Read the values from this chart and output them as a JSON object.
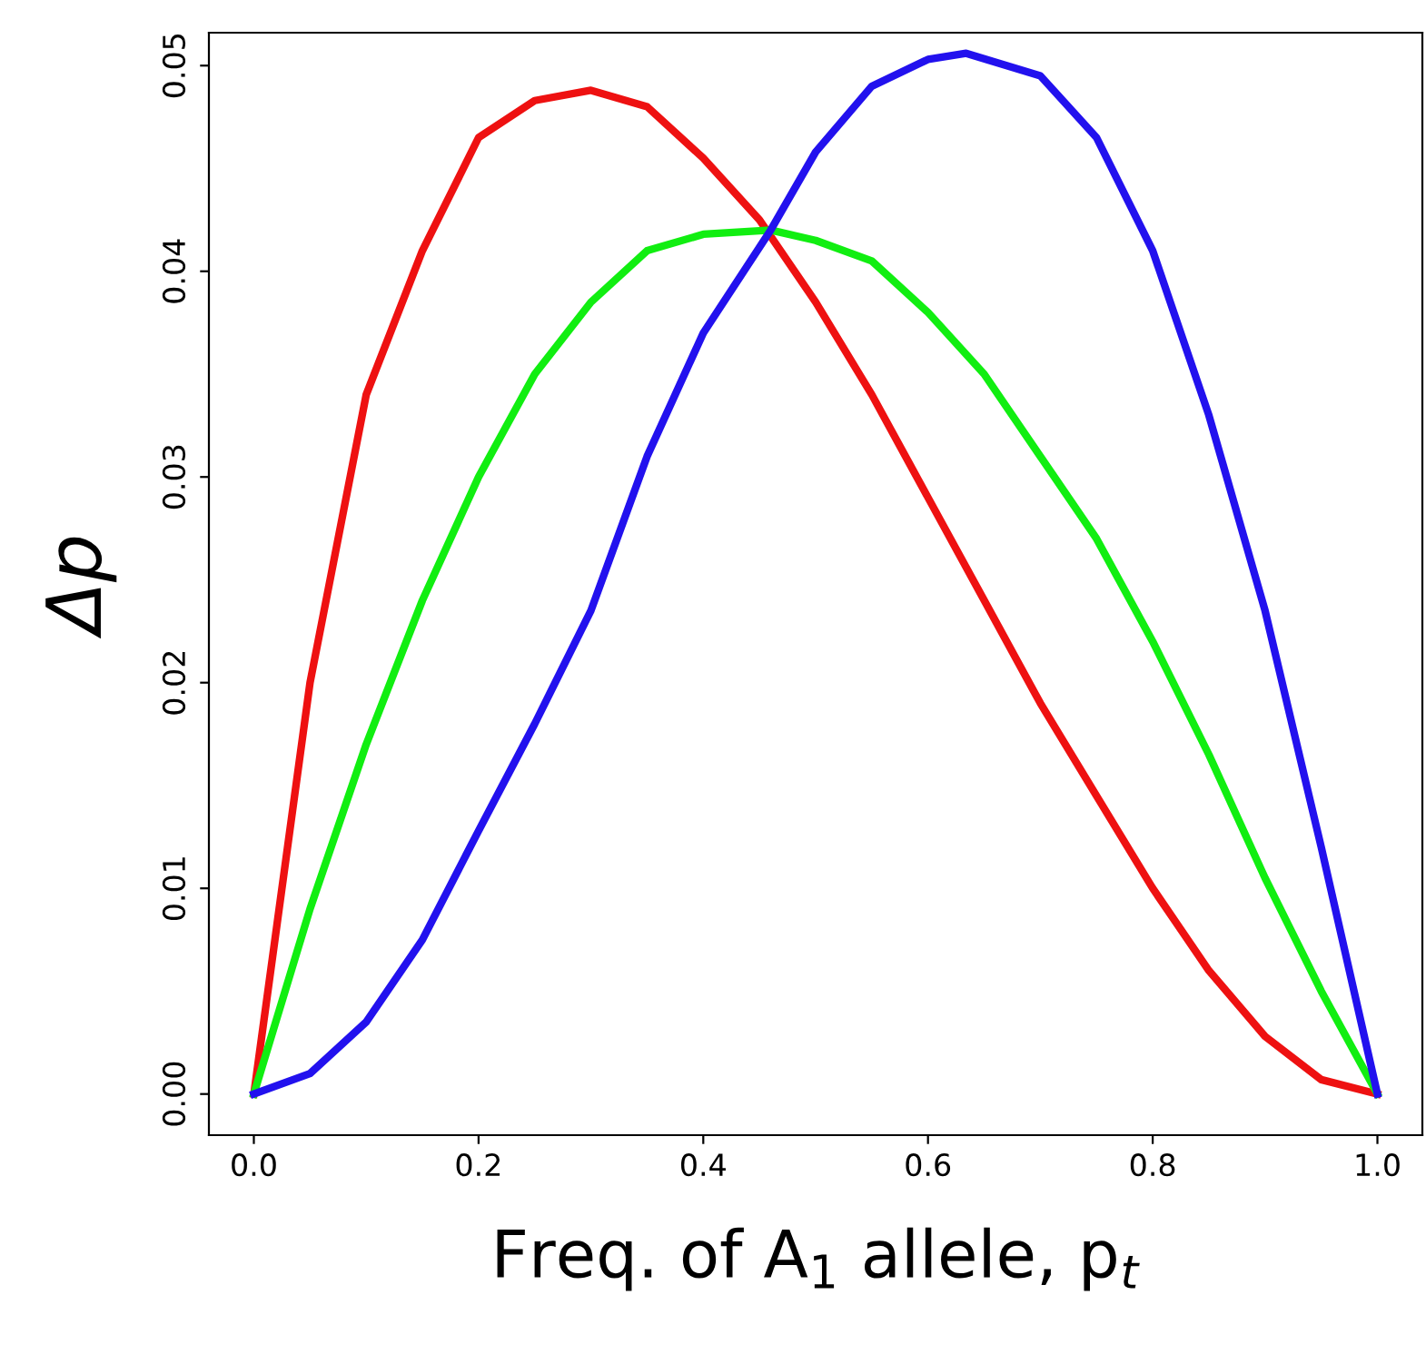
{
  "chart_data": {
    "type": "line",
    "xlabel": "Freq. of A$_{1}$ allele, p$_{t}$",
    "ylabel": "Δp",
    "xlim": [
      -0.04,
      1.04
    ],
    "ylim": [
      -0.002,
      0.0516
    ],
    "xticks": [
      {
        "value": 0,
        "label": "0.0"
      },
      {
        "value": 0.2,
        "label": "0.2"
      },
      {
        "value": 0.4,
        "label": "0.4"
      },
      {
        "value": 0.6,
        "label": "0.6"
      },
      {
        "value": 0.8,
        "label": "0.8"
      },
      {
        "value": 1,
        "label": "1.0"
      }
    ],
    "yticks": [
      {
        "value": 0,
        "label": "0.00"
      },
      {
        "value": 0.01,
        "label": "0.01"
      },
      {
        "value": 0.02,
        "label": "0.02"
      },
      {
        "value": 0.03,
        "label": "0.03"
      },
      {
        "value": 0.04,
        "label": "0.04"
      },
      {
        "value": 0.05,
        "label": "0.05"
      }
    ],
    "grid": false,
    "legend": false,
    "marker": "none",
    "line_style": "solid",
    "series": [
      {
        "color": "#ee1111",
        "x": [
          0,
          0.05,
          0.1,
          0.15,
          0.2,
          0.25,
          0.3,
          0.35,
          0.4,
          0.45,
          0.5,
          0.55,
          0.6,
          0.65,
          0.7,
          0.75,
          0.8,
          0.85,
          0.9,
          0.95,
          1
        ],
        "values": [
          0,
          0.02,
          0.034,
          0.041,
          0.0465,
          0.0483,
          0.0488,
          0.048,
          0.0455,
          0.0425,
          0.0385,
          0.034,
          0.029,
          0.024,
          0.019,
          0.0145,
          0.01,
          0.006,
          0.0028,
          0.0007,
          0
        ]
      },
      {
        "color": "#11ee11",
        "x": [
          0,
          0.05,
          0.1,
          0.15,
          0.2,
          0.25,
          0.3,
          0.35,
          0.4,
          0.46,
          0.5,
          0.55,
          0.6,
          0.65,
          0.7,
          0.75,
          0.8,
          0.85,
          0.9,
          0.95,
          1
        ],
        "values": [
          0,
          0.009,
          0.017,
          0.024,
          0.03,
          0.035,
          0.0385,
          0.041,
          0.0418,
          0.042,
          0.0415,
          0.0405,
          0.038,
          0.035,
          0.031,
          0.027,
          0.022,
          0.0165,
          0.0105,
          0.005,
          0
        ]
      },
      {
        "color": "#2211ee",
        "x": [
          0,
          0.05,
          0.1,
          0.15,
          0.2,
          0.25,
          0.3,
          0.35,
          0.4,
          0.46,
          0.5,
          0.55,
          0.6,
          0.634,
          0.7,
          0.75,
          0.8,
          0.85,
          0.9,
          0.95,
          1
        ],
        "values": [
          0,
          0.001,
          0.0035,
          0.0075,
          0.0128,
          0.018,
          0.0235,
          0.031,
          0.037,
          0.042,
          0.0458,
          0.049,
          0.0503,
          0.0506,
          0.0495,
          0.0465,
          0.041,
          0.033,
          0.0235,
          0.012,
          0
        ]
      }
    ]
  }
}
